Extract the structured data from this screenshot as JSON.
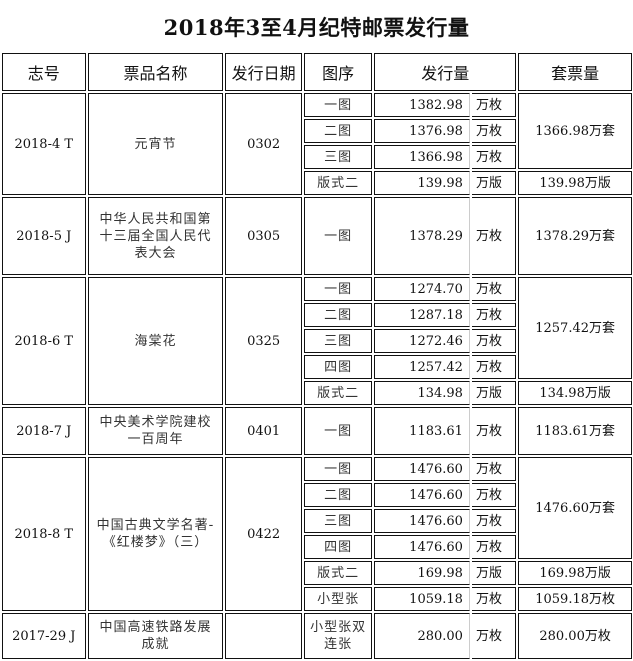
{
  "title": "2018年3至4月纪特邮票发行量",
  "headers": [
    "志号",
    "票品名称",
    "发行日期",
    "图序",
    "发行量",
    "套票量"
  ],
  "groups": [
    {
      "code": "2018-4 T",
      "name": "元宵节",
      "date": "0302",
      "items": [
        {
          "seq": "一图",
          "qty": "1382.98",
          "unit": "万枚"
        },
        {
          "seq": "二图",
          "qty": "1376.98",
          "unit": "万枚"
        },
        {
          "seq": "三图",
          "qty": "1366.98",
          "unit": "万枚"
        },
        {
          "seq": "版式二",
          "qty": "139.98",
          "unit": "万版"
        }
      ],
      "sets": [
        {
          "text": "1366.98万套",
          "rows": 3
        },
        {
          "text": "139.98万版",
          "rows": 1
        }
      ]
    },
    {
      "code": "2018-5 J",
      "name": "中华人民共和国第十三届全国人民代表大会",
      "date": "0305",
      "items": [
        {
          "seq": "一图",
          "qty": "1378.29",
          "unit": "万枚"
        }
      ],
      "sets": [
        {
          "text": "1378.29万套",
          "rows": 1
        }
      ]
    },
    {
      "code": "2018-6 T",
      "name": "海棠花",
      "date": "0325",
      "items": [
        {
          "seq": "一图",
          "qty": "1274.70",
          "unit": "万枚"
        },
        {
          "seq": "二图",
          "qty": "1287.18",
          "unit": "万枚"
        },
        {
          "seq": "三图",
          "qty": "1272.46",
          "unit": "万枚"
        },
        {
          "seq": "四图",
          "qty": "1257.42",
          "unit": "万枚"
        },
        {
          "seq": "版式二",
          "qty": "134.98",
          "unit": "万版"
        }
      ],
      "sets": [
        {
          "text": "1257.42万套",
          "rows": 4
        },
        {
          "text": "134.98万版",
          "rows": 1
        }
      ]
    },
    {
      "code": "2018-7 J",
      "name": "中央美术学院建校一百周年",
      "date": "0401",
      "items": [
        {
          "seq": "一图",
          "qty": "1183.61",
          "unit": "万枚"
        }
      ],
      "sets": [
        {
          "text": "1183.61万套",
          "rows": 1
        }
      ]
    },
    {
      "code": "2018-8 T",
      "name": "中国古典文学名著-《红楼梦》（三）",
      "date": "0422",
      "items": [
        {
          "seq": "一图",
          "qty": "1476.60",
          "unit": "万枚"
        },
        {
          "seq": "二图",
          "qty": "1476.60",
          "unit": "万枚"
        },
        {
          "seq": "三图",
          "qty": "1476.60",
          "unit": "万枚"
        },
        {
          "seq": "四图",
          "qty": "1476.60",
          "unit": "万枚"
        },
        {
          "seq": "版式二",
          "qty": "169.98",
          "unit": "万版"
        },
        {
          "seq": "小型张",
          "qty": "1059.18",
          "unit": "万枚"
        }
      ],
      "sets": [
        {
          "text": "1476.60万套",
          "rows": 4
        },
        {
          "text": "169.98万版",
          "rows": 1
        },
        {
          "text": "1059.18万枚",
          "rows": 1
        }
      ]
    },
    {
      "code": "2017-29 J",
      "name": "中国高速铁路发展成就",
      "date": "",
      "items": [
        {
          "seq": "小型张双连张",
          "qty": "280.00",
          "unit": "万枚"
        }
      ],
      "sets": [
        {
          "text": "280.00万枚",
          "rows": 1
        }
      ]
    }
  ]
}
